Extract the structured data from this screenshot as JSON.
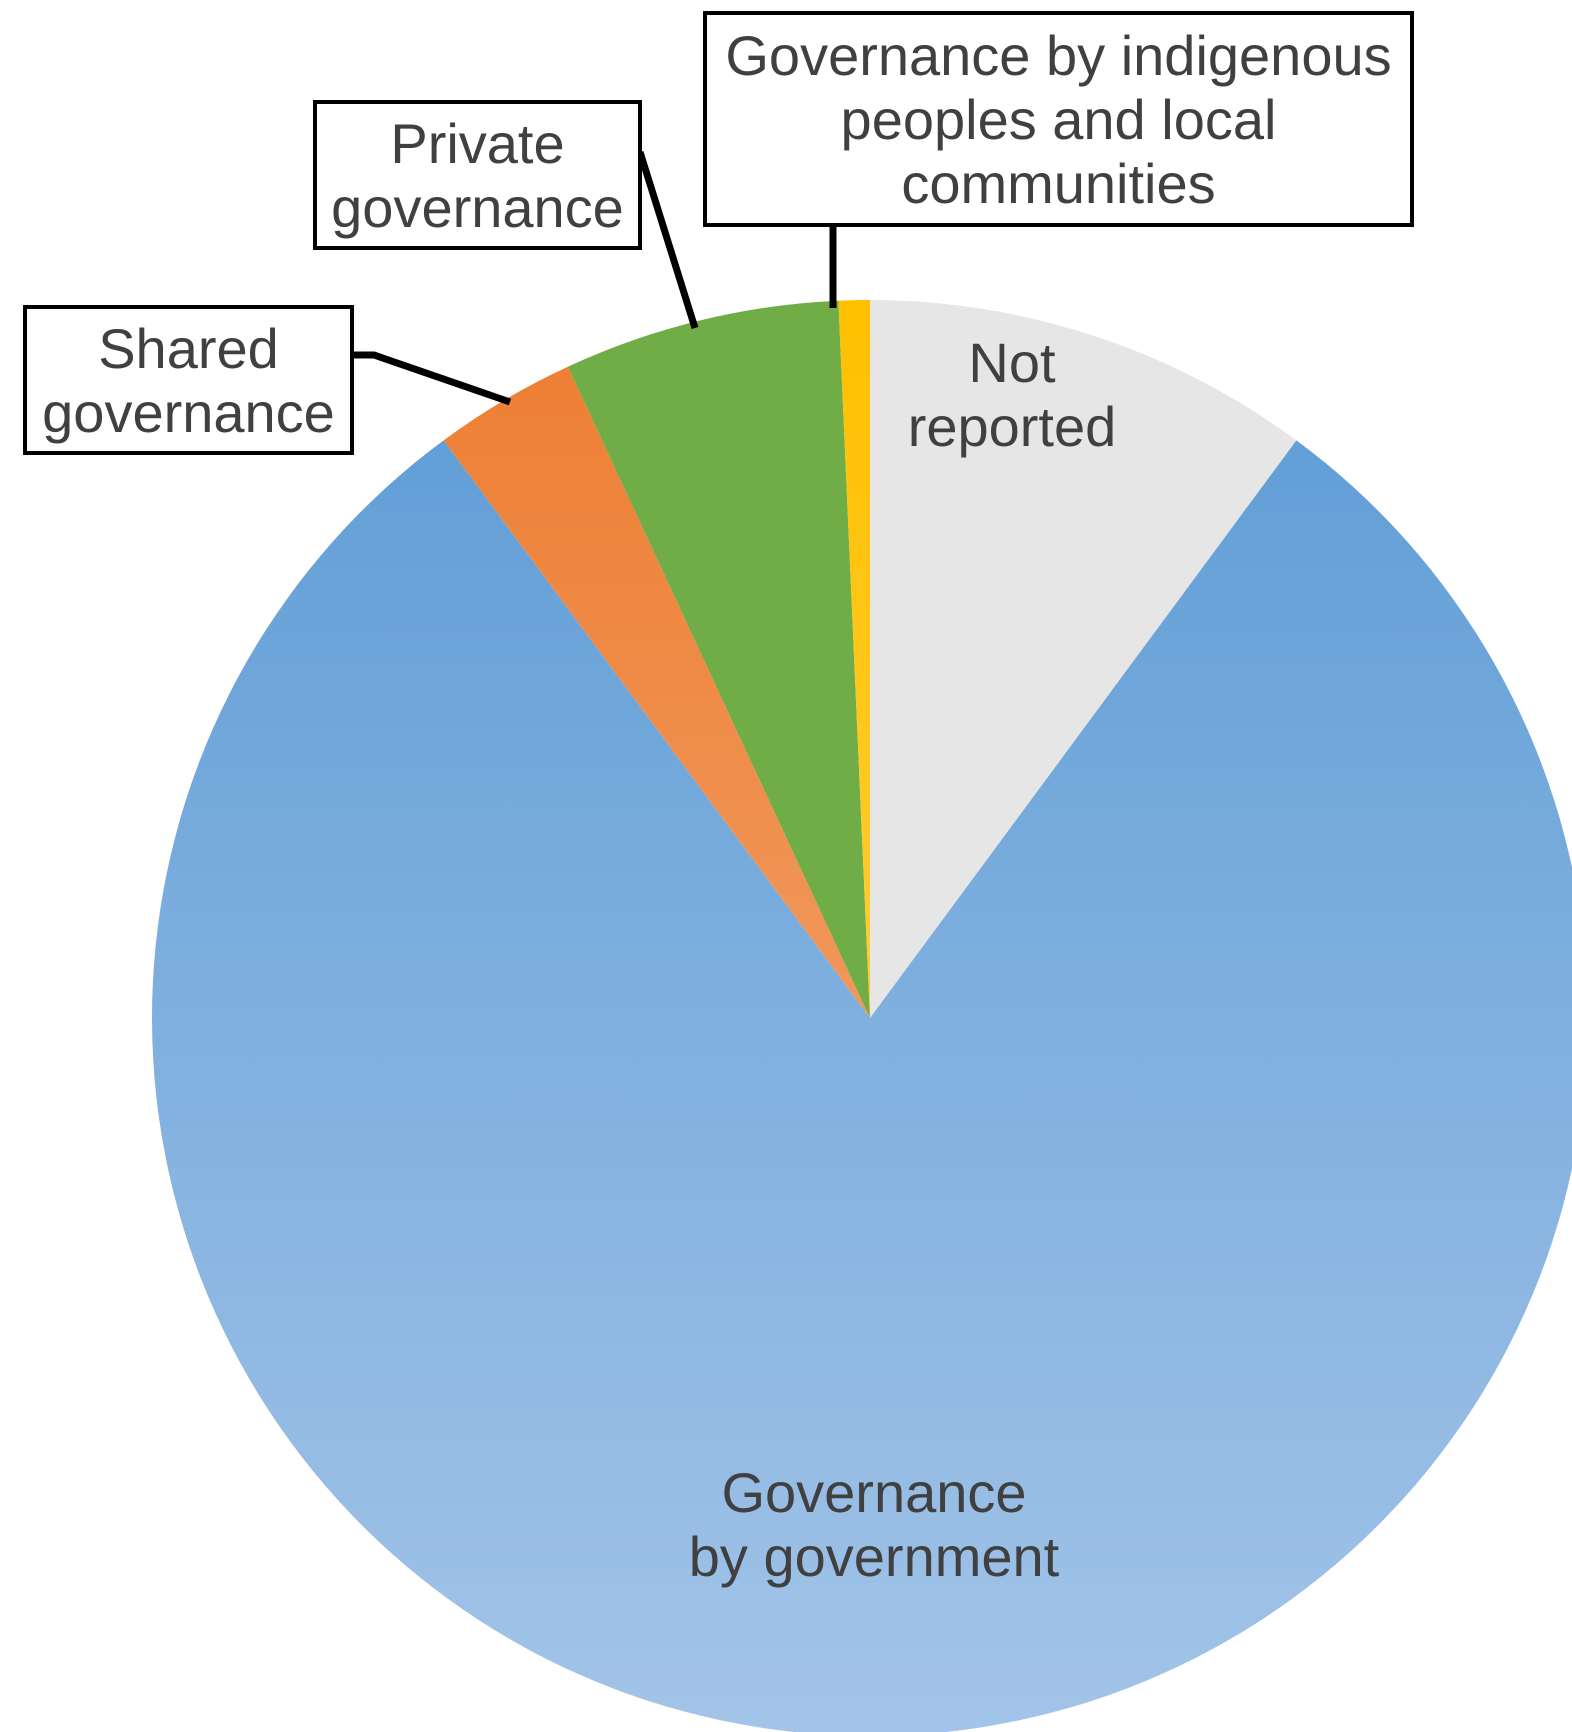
{
  "chart_data": {
    "type": "pie",
    "start_angle_deg": 0,
    "direction": "clockwise",
    "slices": [
      {
        "label": [
          "Not",
          "reported"
        ],
        "value": 10.1,
        "color_top": "#e6e6e6",
        "color_bottom": "#e6e6e6",
        "label_style": "inside"
      },
      {
        "label": [
          "Governance",
          "by government"
        ],
        "value": 79.6,
        "color_top": "#5b9bd5",
        "color_bottom": "#a3c4e8",
        "label_style": "inside"
      },
      {
        "label": [
          "Shared",
          "governance"
        ],
        "value": 3.2,
        "color_top": "#ed7d31",
        "color_bottom": "#f4b183",
        "label_style": "callout"
      },
      {
        "label": [
          "Private",
          "governance"
        ],
        "value": 6.2,
        "color_top": "#70ad47",
        "color_bottom": "#70ad47",
        "label_style": "callout"
      },
      {
        "label": [
          "Governance by indigenous",
          "peoples and local",
          "communities"
        ],
        "value": 0.7,
        "color_top": "#ffc000",
        "color_bottom": "#ffd966",
        "label_style": "callout"
      }
    ]
  }
}
